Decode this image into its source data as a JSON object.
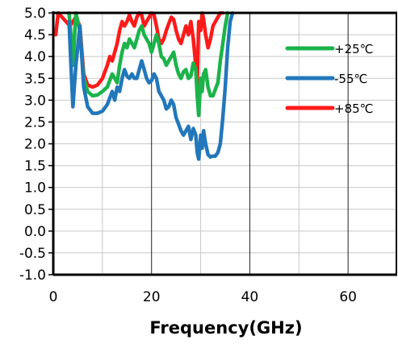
{
  "chart_data": {
    "type": "line",
    "title": "",
    "xlabel": "Frequency(GHz)",
    "ylabel": "",
    "xlim": [
      0,
      70
    ],
    "ylim": [
      -1.0,
      5.0
    ],
    "x_ticks": [
      0,
      20,
      40,
      60
    ],
    "x_tick_labels": [
      "0",
      "20",
      "40",
      "60"
    ],
    "y_ticks": [
      -1.0,
      -0.5,
      0.0,
      0.5,
      1.0,
      1.5,
      2.0,
      2.5,
      3.0,
      3.5,
      4.0,
      4.5,
      5.0
    ],
    "y_tick_labels": [
      "-1.0",
      "-0.5",
      "0.0",
      "0.5",
      "1.0",
      "1.5",
      "2.0",
      "2.5",
      "3.0",
      "3.5",
      "4.0",
      "4.5",
      "5.0"
    ],
    "x_minor_ticks": [
      10,
      30,
      50
    ],
    "grid": true,
    "legend_position": "top-right",
    "series": [
      {
        "name": "+25℃",
        "color": "#1bb34a",
        "x": [
          3.2,
          3.6,
          4.0,
          4.6,
          5.4,
          6.2,
          7.0,
          8.0,
          9.0,
          10.0,
          11.0,
          12.0,
          12.5,
          13.0,
          13.5,
          14.0,
          14.5,
          15.0,
          15.5,
          16.0,
          16.5,
          17.0,
          17.5,
          18.0,
          18.5,
          19.0,
          19.5,
          20.0,
          20.5,
          21.0,
          21.5,
          22.0,
          22.5,
          23.0,
          23.5,
          24.0,
          24.5,
          25.0,
          25.5,
          26.0,
          26.5,
          27.0,
          27.5,
          28.0,
          28.5,
          29.0,
          29.3,
          29.6,
          30.0,
          30.3,
          30.6,
          31.0,
          31.5,
          32.0,
          32.5,
          33.0,
          33.5,
          34.0,
          34.5,
          35.0,
          35.5
        ],
        "y": [
          5.0,
          4.5,
          3.8,
          5.0,
          4.6,
          3.5,
          3.2,
          3.1,
          3.12,
          3.2,
          3.3,
          3.6,
          3.5,
          3.4,
          3.8,
          4.1,
          4.3,
          4.2,
          4.4,
          4.3,
          4.2,
          4.4,
          4.6,
          4.7,
          4.5,
          4.4,
          4.3,
          4.1,
          4.3,
          4.5,
          4.3,
          4.0,
          3.95,
          3.8,
          3.9,
          4.0,
          4.1,
          3.8,
          3.6,
          3.5,
          3.65,
          3.7,
          3.5,
          3.55,
          3.85,
          3.7,
          3.1,
          2.65,
          3.5,
          3.2,
          3.6,
          3.7,
          3.3,
          3.1,
          3.1,
          3.25,
          3.4,
          3.9,
          4.3,
          4.7,
          5.0
        ]
      },
      {
        "name": "-55℃",
        "color": "#2277bb",
        "x": [
          3.2,
          3.6,
          4.0,
          4.6,
          5.4,
          6.2,
          7.0,
          8.0,
          9.0,
          10.0,
          11.0,
          12.0,
          12.5,
          13.0,
          13.5,
          14.0,
          14.5,
          15.0,
          15.5,
          16.0,
          16.5,
          17.0,
          17.5,
          18.0,
          18.5,
          19.0,
          19.5,
          20.0,
          20.5,
          21.0,
          21.5,
          22.0,
          22.5,
          23.0,
          23.5,
          24.0,
          24.5,
          25.0,
          25.5,
          26.0,
          26.5,
          27.0,
          27.5,
          28.0,
          28.5,
          29.0,
          29.3,
          29.6,
          30.0,
          30.3,
          30.6,
          31.0,
          31.5,
          32.0,
          32.5,
          33.0,
          33.5,
          34.0,
          34.5,
          35.0,
          35.5,
          36.0,
          36.5
        ],
        "y": [
          4.8,
          3.8,
          2.85,
          3.8,
          4.7,
          3.3,
          2.85,
          2.7,
          2.7,
          2.75,
          2.9,
          3.2,
          3.0,
          3.3,
          3.2,
          3.5,
          3.7,
          3.55,
          3.5,
          3.6,
          3.5,
          3.5,
          3.7,
          3.9,
          3.7,
          3.5,
          3.4,
          3.45,
          3.6,
          3.5,
          3.2,
          3.1,
          3.0,
          2.8,
          2.85,
          3.0,
          2.9,
          2.6,
          2.45,
          2.3,
          2.2,
          2.3,
          2.4,
          2.1,
          2.35,
          2.2,
          1.8,
          1.65,
          2.2,
          1.9,
          2.3,
          2.0,
          1.75,
          1.7,
          1.72,
          1.72,
          1.8,
          2.0,
          2.6,
          3.3,
          4.2,
          4.8,
          5.0
        ]
      },
      {
        "name": "+85℃",
        "color": "#ff1a1a",
        "x": [
          0.5,
          1.0,
          3.4,
          4.6,
          5.4,
          6.2,
          7.0,
          8.0,
          9.0,
          10.0,
          11.0,
          11.5,
          12.0,
          12.5,
          13.0,
          13.5,
          14.0,
          14.5,
          15.0,
          15.5,
          16.0,
          16.5,
          17.0,
          17.5,
          18.0,
          18.5,
          19.0,
          19.5,
          20.0,
          20.5,
          21.0,
          21.5,
          22.0,
          22.5,
          23.0,
          23.5,
          24.0,
          24.5,
          25.0,
          25.5,
          26.0,
          26.5,
          27.0,
          27.5,
          28.0,
          28.5,
          29.0,
          29.3,
          29.6,
          30.0,
          30.3,
          30.6,
          31.0,
          31.5,
          32.0,
          32.5,
          33.0,
          33.5,
          34.0,
          34.5
        ],
        "y": [
          4.5,
          5.0,
          4.7,
          4.9,
          4.7,
          3.6,
          3.35,
          3.3,
          3.35,
          3.5,
          3.8,
          4.0,
          3.9,
          4.1,
          4.3,
          4.6,
          4.8,
          4.7,
          4.8,
          4.95,
          4.8,
          4.7,
          4.9,
          5.0,
          4.95,
          4.7,
          4.8,
          4.9,
          5.0,
          4.95,
          4.7,
          4.4,
          4.3,
          4.4,
          4.6,
          4.75,
          4.9,
          4.85,
          4.6,
          4.4,
          4.3,
          4.5,
          4.7,
          4.5,
          4.8,
          4.4,
          3.8,
          3.3,
          4.8,
          4.6,
          5.0,
          4.85,
          4.5,
          4.2,
          4.4,
          4.7,
          4.8,
          4.9,
          5.0,
          5.0
        ]
      }
    ]
  }
}
